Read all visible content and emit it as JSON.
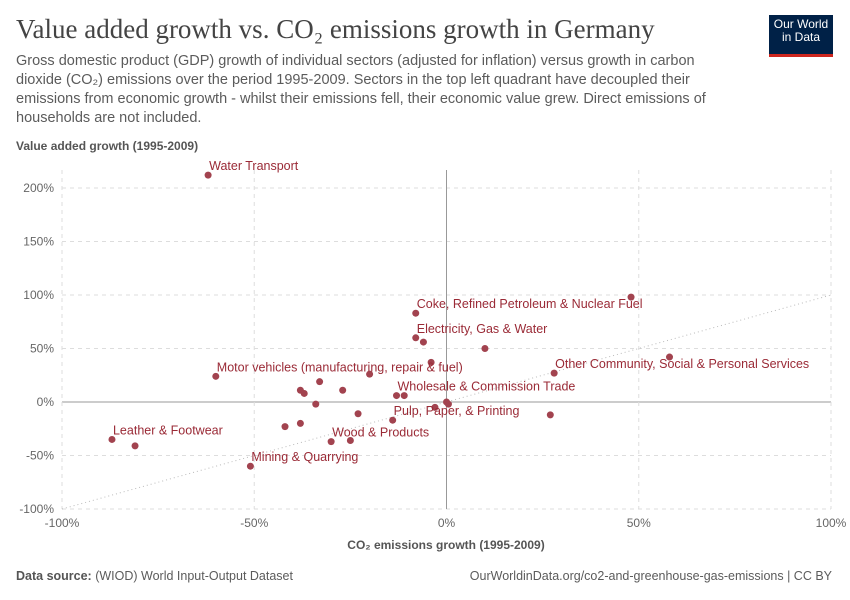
{
  "header": {
    "title": "Value added growth vs. CO₂ emissions growth in Germany",
    "subtitle": "Gross domestic product (GDP) growth of individual sectors (adjusted for inflation) versus growth in carbon dioxide (CO₂) emissions over the period 1995-2009. Sectors in the top left quadrant have decoupled their emissions from economic growth - whilst their emissions fell, their economic value grew. Direct emissions of households are not included.",
    "logo": "Our World in Data"
  },
  "footer": {
    "source_label": "Data source:",
    "source": "(WIOD) World Input-Output Dataset",
    "url": "OurWorldinData.org/co2-and-greenhouse-gas-emissions | CC BY"
  },
  "chart_data": {
    "type": "scatter",
    "xlabel": "CO₂ emissions growth (1995-2009)",
    "ylabel": "Value added growth (1995-2009)",
    "xlim": [
      -100,
      100
    ],
    "ylim": [
      -100,
      200
    ],
    "xticks": [
      -100,
      -50,
      0,
      50,
      100
    ],
    "xtick_labels": [
      "-100%",
      "-50%",
      "0%",
      "50%",
      "100%"
    ],
    "yticks": [
      -100,
      -50,
      0,
      50,
      100,
      150,
      200
    ],
    "ytick_labels": [
      "-100%",
      "-50%",
      "0%",
      "50%",
      "100%",
      "150%",
      "200%"
    ],
    "grid": true,
    "diagonal_reference_line": true,
    "color": "#a2434f",
    "label_color": "#9a2a36",
    "points": [
      {
        "x": -62,
        "y": 212,
        "label": "Water Transport"
      },
      {
        "x": -8,
        "y": 83,
        "label": "Coke, Refined Petroleum & Nuclear Fuel"
      },
      {
        "x": 48,
        "y": 98
      },
      {
        "x": -8,
        "y": 60,
        "label": "Electricity, Gas & Water"
      },
      {
        "x": -6,
        "y": 56
      },
      {
        "x": 10,
        "y": 50
      },
      {
        "x": -4,
        "y": 37
      },
      {
        "x": -60,
        "y": 24,
        "label": "Motor vehicles (manufacturing, repair & fuel)"
      },
      {
        "x": -20,
        "y": 26
      },
      {
        "x": 28,
        "y": 27,
        "label": "Other Community, Social & Personal Services"
      },
      {
        "x": 58,
        "y": 42
      },
      {
        "x": -33,
        "y": 19
      },
      {
        "x": -38,
        "y": 11
      },
      {
        "x": -37,
        "y": 8
      },
      {
        "x": -27,
        "y": 11
      },
      {
        "x": -13,
        "y": 6,
        "label": "Wholesale & Commission Trade"
      },
      {
        "x": -11,
        "y": 6
      },
      {
        "x": -34,
        "y": -2
      },
      {
        "x": 0,
        "y": 0
      },
      {
        "x": 0.5,
        "y": -2
      },
      {
        "x": -3,
        "y": -5
      },
      {
        "x": -23,
        "y": -11
      },
      {
        "x": 27,
        "y": -12
      },
      {
        "x": -14,
        "y": -17,
        "label": "Pulp, Paper, & Printing"
      },
      {
        "x": -38,
        "y": -20
      },
      {
        "x": -42,
        "y": -23
      },
      {
        "x": -87,
        "y": -35,
        "label": "Leather & Footwear"
      },
      {
        "x": -81,
        "y": -41
      },
      {
        "x": -30,
        "y": -37,
        "label": "Wood & Products"
      },
      {
        "x": -25,
        "y": -36
      },
      {
        "x": -51,
        "y": -60,
        "label": "Mining & Quarrying"
      }
    ]
  }
}
